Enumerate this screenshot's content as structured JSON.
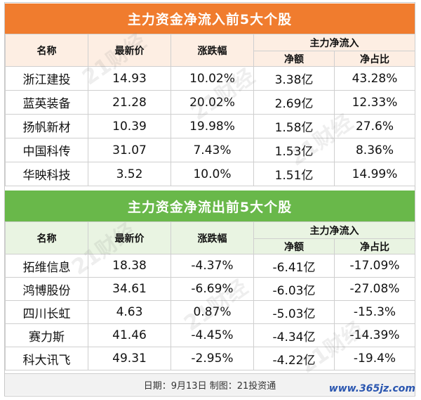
{
  "inflow": {
    "title": "主力资金净流入前5大个股",
    "headers": {
      "name": "名称",
      "price": "最新价",
      "change": "涨跌幅",
      "net_group": "主力净流入",
      "amount": "净额",
      "ratio": "净占比"
    },
    "rows": [
      {
        "name": "浙江建投",
        "price": "14.93",
        "change": "10.02%",
        "amount": "3.38亿",
        "ratio": "43.28%"
      },
      {
        "name": "蓝英装备",
        "price": "21.28",
        "change": "20.02%",
        "amount": "2.69亿",
        "ratio": "12.33%"
      },
      {
        "name": "扬帆新材",
        "price": "10.39",
        "change": "19.98%",
        "amount": "1.58亿",
        "ratio": "27.6%"
      },
      {
        "name": "中国科传",
        "price": "31.07",
        "change": "7.43%",
        "amount": "1.53亿",
        "ratio": "8.36%"
      },
      {
        "name": "华映科技",
        "price": "3.52",
        "change": "10.0%",
        "amount": "1.51亿",
        "ratio": "14.99%"
      }
    ]
  },
  "outflow": {
    "title": "主力资金净流出前5大个股",
    "headers": {
      "name": "名称",
      "price": "最新价",
      "change": "涨跌幅",
      "net_group": "主力净流入",
      "amount": "净额",
      "ratio": "净占比"
    },
    "rows": [
      {
        "name": "拓维信息",
        "price": "18.38",
        "change": "-4.37%",
        "amount": "-6.41亿",
        "ratio": "-17.09%"
      },
      {
        "name": "鸿博股份",
        "price": "34.61",
        "change": "-6.69%",
        "amount": "-6.03亿",
        "ratio": "-27.08%"
      },
      {
        "name": "四川长虹",
        "price": "4.63",
        "change": "0.87%",
        "amount": "-5.03亿",
        "ratio": "-15.3%"
      },
      {
        "name": "赛力斯",
        "price": "41.46",
        "change": "-4.45%",
        "amount": "-4.34亿",
        "ratio": "-14.39%"
      },
      {
        "name": "科大讯飞",
        "price": "49.31",
        "change": "-2.95%",
        "amount": "-4.22亿",
        "ratio": "-19.4%"
      }
    ]
  },
  "footer": {
    "text": "日期：9月13日 制图：21投资通"
  },
  "watermark": {
    "site": "www.365jz.com",
    "mark": "21财经"
  },
  "colors": {
    "inflow_header": "#f07c2e",
    "outflow_header": "#69b84a",
    "inflow_subheader": "#fdeee3",
    "outflow_subheader": "#e9f4e2"
  }
}
